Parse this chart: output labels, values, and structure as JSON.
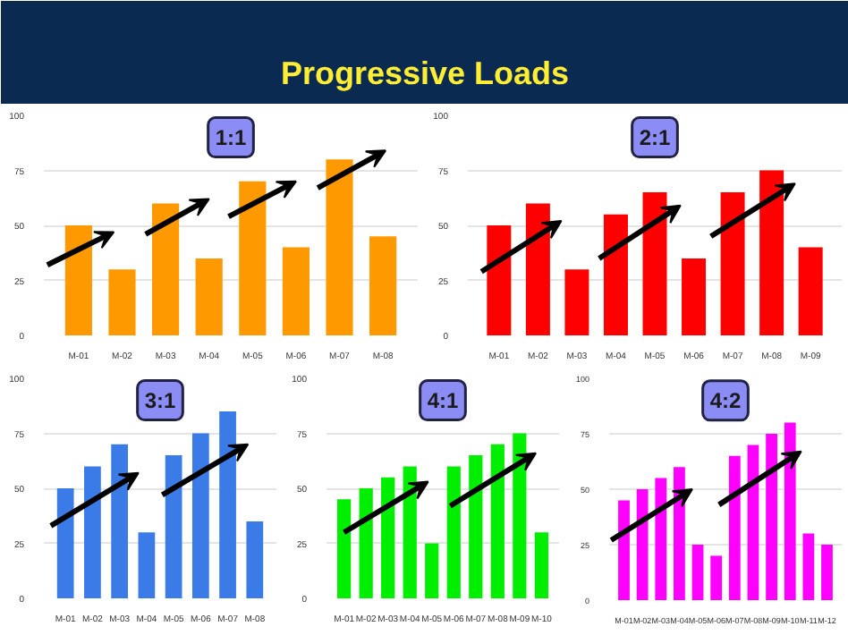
{
  "chart_data": [
    {
      "type": "other",
      "title": "Progressive Loads"
    },
    {
      "type": "bar",
      "title": "1:1",
      "categories": [
        "M-01",
        "M-02",
        "M-03",
        "M-04",
        "M-05",
        "M-06",
        "M-07",
        "M-08"
      ],
      "values": [
        50,
        30,
        60,
        35,
        70,
        40,
        80,
        45
      ],
      "color": "#ff9900",
      "ylim": [
        0,
        100
      ],
      "yticks": [
        0,
        25,
        50,
        75,
        100
      ],
      "grid": "y"
    },
    {
      "type": "bar",
      "title": "2:1",
      "categories": [
        "M-01",
        "M-02",
        "M-03",
        "M-04",
        "M-05",
        "M-06",
        "M-07",
        "M-08",
        "M-09"
      ],
      "values": [
        50,
        60,
        30,
        55,
        65,
        35,
        65,
        75,
        40
      ],
      "color": "#ff0000",
      "ylim": [
        0,
        100
      ],
      "yticks": [
        0,
        25,
        50,
        75,
        100
      ],
      "grid": "y"
    },
    {
      "type": "bar",
      "title": "3:1",
      "categories": [
        "M-01",
        "M-02",
        "M-03",
        "M-04",
        "M-05",
        "M-06",
        "M-07",
        "M-08"
      ],
      "values": [
        50,
        60,
        70,
        30,
        65,
        75,
        85,
        35
      ],
      "color": "#3b7be8",
      "ylim": [
        0,
        100
      ],
      "yticks": [
        0,
        25,
        50,
        75,
        100
      ],
      "grid": "y"
    },
    {
      "type": "bar",
      "title": "4:1",
      "categories": [
        "M-01",
        "M-02",
        "M-03",
        "M-04",
        "M-05",
        "M-06",
        "M-07",
        "M-08",
        "M-09",
        "M-10"
      ],
      "values": [
        45,
        50,
        55,
        60,
        25,
        60,
        65,
        70,
        75,
        30
      ],
      "color": "#00ee00",
      "ylim": [
        0,
        100
      ],
      "yticks": [
        0,
        25,
        50,
        75,
        100
      ],
      "grid": "y"
    },
    {
      "type": "bar",
      "title": "4:2",
      "categories": [
        "M-01",
        "M-02",
        "M-03",
        "M-04",
        "M-05",
        "M-06",
        "M-07",
        "M-08",
        "M-09",
        "M-10",
        "M-11",
        "M-12"
      ],
      "values": [
        45,
        50,
        55,
        60,
        25,
        20,
        65,
        70,
        75,
        80,
        30,
        25
      ],
      "color": "#ff00ff",
      "ylim": [
        0,
        100
      ],
      "yticks": [
        0,
        25,
        50,
        75,
        100
      ],
      "grid": "y"
    }
  ]
}
